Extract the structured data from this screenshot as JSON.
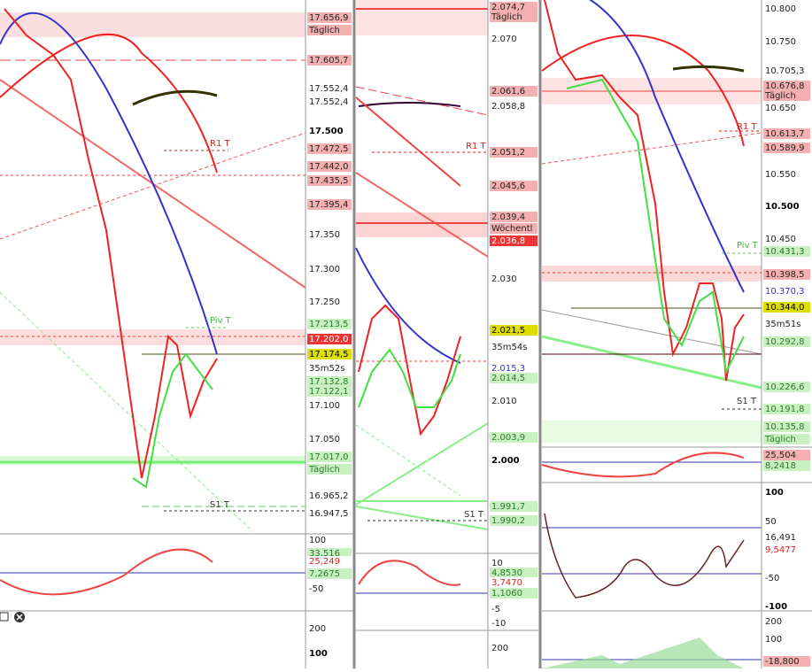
{
  "panels": [
    {
      "labels": [
        "17.656,9",
        "Täglich",
        "17.605,7",
        "17.552,4",
        "17.552,4",
        "17.500",
        "17.472,5",
        "17.442,0",
        "17.435,5",
        "17.395,4",
        "17.350",
        "17.300",
        "17.250",
        "17.213,5",
        "17.202,0",
        "17.174,5",
        "35m52s",
        "17.132,8",
        "17.122,1",
        "17.100",
        "17.050",
        "17.017,0",
        "Täglich",
        "16.965,2",
        "16.947,5",
        "100",
        "33,516",
        "25,249",
        "7,2675",
        "-50",
        "200",
        "100"
      ],
      "markers": [
        "R1 T",
        "Piv T",
        "S1 T"
      ]
    },
    {
      "labels": [
        "2.074,7",
        "Täglich",
        "2.070",
        "2.061,6",
        "2.058,8",
        "2.051,2",
        "2.045,6",
        "2.039,4",
        "Wöchentl",
        "2.036,8",
        "2.030",
        "2.021,5",
        "35m54s",
        "2.015,3",
        "2.014,5",
        "2.010",
        "2.003,9",
        "2.000",
        "1.991,7",
        "1.990,2",
        "10",
        "4,8530",
        "3,7470",
        "1,1060",
        "-5",
        "-10",
        "200"
      ],
      "markers": [
        "R1 T",
        "S1 T"
      ]
    },
    {
      "labels": [
        "10.800",
        "10.750",
        "10.705,3",
        "10.676,8",
        "Täglich",
        "10.650",
        "10.613,7",
        "10.589,9",
        "10.550",
        "10.500",
        "10.450",
        "10.431,3",
        "10.398,5",
        "10.370,3",
        "10.344,0",
        "35m51s",
        "10.292,8",
        "10.226,6",
        "10.191,8",
        "10.135,8",
        "Täglich",
        "25,504",
        "8,2418",
        "100",
        "50",
        "16,491",
        "9,5477",
        "-50",
        "-100",
        "200",
        "100",
        "-18,800"
      ],
      "markers": [
        "R1 T",
        "Piv T",
        "S1 T"
      ]
    }
  ]
}
